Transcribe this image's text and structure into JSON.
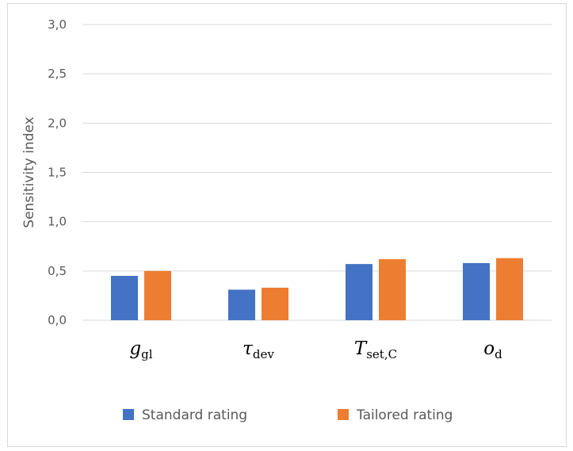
{
  "chart_data": {
    "type": "bar",
    "categories": [
      {
        "main": "g",
        "sub": "gl"
      },
      {
        "main": "τ",
        "sub": "dev"
      },
      {
        "main": "T",
        "sub": "set,C"
      },
      {
        "main": "o",
        "sub": "d"
      }
    ],
    "series": [
      {
        "name": "Standard rating",
        "color": "#4472c4",
        "values": [
          0.45,
          0.31,
          0.57,
          0.58
        ]
      },
      {
        "name": "Tailored rating",
        "color": "#ed7d31",
        "values": [
          0.5,
          0.33,
          0.62,
          0.63
        ]
      }
    ],
    "ylabel": "Sensitivity index",
    "ylim": [
      0,
      3.0
    ],
    "yticks": [
      "0,0",
      "0,5",
      "1,0",
      "1,5",
      "2,0",
      "2,5",
      "3,0"
    ],
    "grid": true,
    "legend_position": "bottom"
  }
}
